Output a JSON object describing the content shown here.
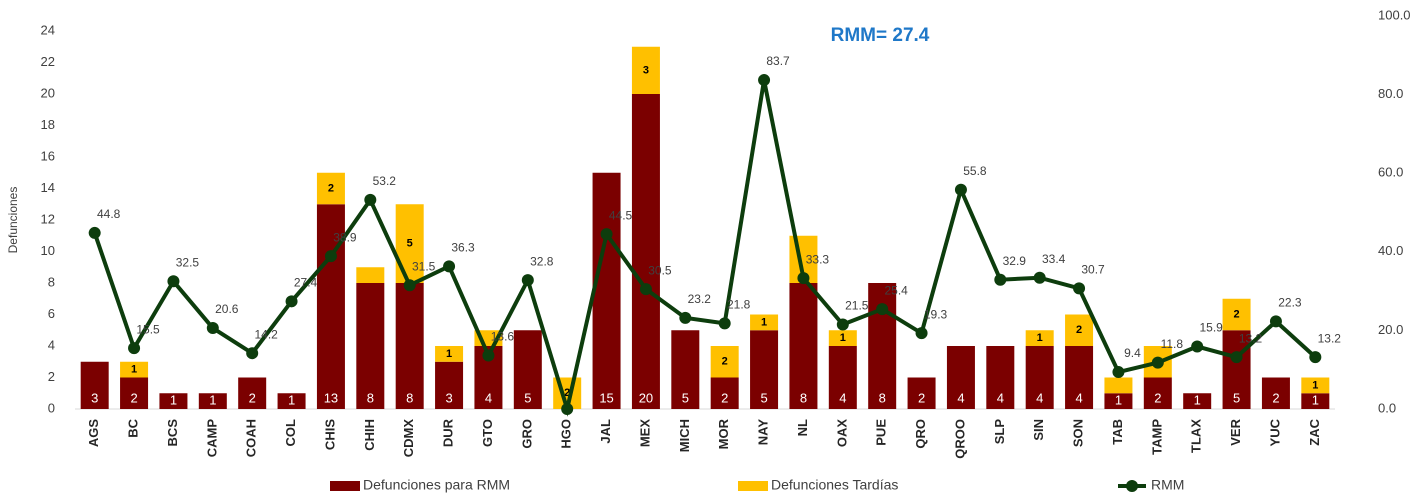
{
  "chart_data": {
    "type": "bar",
    "stacked": true,
    "annotation": "RMM= 27.4",
    "y_label": "Defunciones",
    "categories": [
      "AGS",
      "BC",
      "BCS",
      "CAMP",
      "COAH",
      "COL",
      "CHIS",
      "CHIH",
      "CDMX",
      "DUR",
      "GTO",
      "GRO",
      "HGO",
      "JAL",
      "MEX",
      "MICH",
      "MOR",
      "NAY",
      "NL",
      "OAX",
      "PUE",
      "QRO",
      "QROO",
      "SLP",
      "SIN",
      "SON",
      "TAB",
      "TAMP",
      "TLAX",
      "VER",
      "YUC",
      "ZAC"
    ],
    "series": [
      {
        "name": "Defunciones para RMM",
        "type": "bar",
        "color": "#7b0000",
        "values": [
          3,
          2,
          1,
          1,
          2,
          1,
          13,
          8,
          8,
          3,
          4,
          5,
          0,
          15,
          20,
          5,
          2,
          5,
          8,
          4,
          8,
          2,
          4,
          4,
          4,
          4,
          1,
          2,
          1,
          5,
          2,
          1
        ],
        "value_labels": [
          "3",
          "2",
          "1",
          "1",
          "2",
          "1",
          "13",
          "8",
          "8",
          "3",
          "4",
          "5",
          null,
          "15",
          "20",
          "5",
          "2",
          "5",
          "8",
          "4",
          "8",
          "2",
          "4",
          "4",
          "4",
          "4",
          "1",
          "2",
          "1",
          "5",
          "2",
          "1"
        ]
      },
      {
        "name": "Defunciones Tardías",
        "type": "bar",
        "color": "#ffc000",
        "values": [
          0,
          1,
          0,
          0,
          0,
          0,
          2,
          1,
          5,
          1,
          1,
          0,
          2,
          0,
          3,
          0,
          2,
          1,
          3,
          1,
          0,
          0,
          0,
          0,
          1,
          2,
          1,
          2,
          0,
          2,
          0,
          1
        ],
        "value_labels": [
          null,
          "1",
          null,
          null,
          null,
          null,
          "2",
          null,
          "5",
          "1",
          null,
          null,
          "2",
          null,
          "3",
          null,
          "2",
          "1",
          null,
          "1",
          null,
          null,
          null,
          null,
          "1",
          "2",
          null,
          null,
          null,
          "2",
          null,
          "1"
        ]
      },
      {
        "name": "RMM",
        "type": "line",
        "axis": "y2",
        "color": "#0d3d0d",
        "values": [
          44.8,
          15.5,
          32.5,
          20.6,
          14.2,
          27.4,
          38.9,
          53.2,
          31.5,
          36.3,
          13.6,
          32.8,
          0,
          44.5,
          30.5,
          23.2,
          21.8,
          83.7,
          33.3,
          21.5,
          25.4,
          19.3,
          55.8,
          32.9,
          33.4,
          30.7,
          9.4,
          11.8,
          15.9,
          13.2,
          22.3,
          13.2
        ],
        "value_labels": [
          "44.8",
          "15.5",
          "32.5",
          "20.6",
          "14.2",
          "27.4",
          "38.9",
          "53.2",
          "31.5",
          "36.3",
          "13.6",
          "32.8",
          null,
          "44.5",
          "30.5",
          "23.2",
          "21.8",
          "83.7",
          "33.3",
          "21.5",
          "25.4",
          "19.3",
          "55.8",
          "32.9",
          "33.4",
          "30.7",
          "9.4",
          "11.8",
          "15.9",
          "13.2",
          "22.3",
          "13.2"
        ]
      }
    ],
    "ylim": [
      0,
      24
    ],
    "yticks": [
      0,
      2,
      4,
      6,
      8,
      10,
      12,
      14,
      16,
      18,
      20,
      22,
      24
    ],
    "y2lim": [
      0,
      100
    ],
    "y2ticks": [
      {
        "value": 0,
        "label": "0.0"
      },
      {
        "value": 20,
        "label": "20.0"
      },
      {
        "value": 40,
        "label": "40.0"
      },
      {
        "value": 60,
        "label": "60.0"
      },
      {
        "value": 80,
        "label": "80.0"
      },
      {
        "value": 100,
        "label": "100.0"
      }
    ],
    "legend": "bottom"
  }
}
